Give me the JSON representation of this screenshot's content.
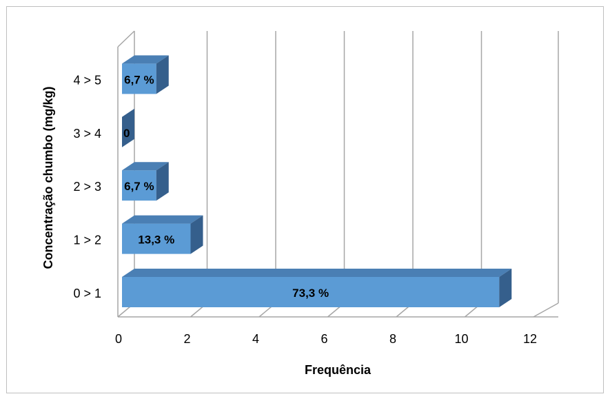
{
  "chart_data": {
    "type": "bar",
    "orientation": "horizontal",
    "style": "3d",
    "title": "",
    "xlabel": "Frequência",
    "ylabel": "Concentração chumbo (mg/kg)",
    "categories": [
      "0 > 1",
      "1 > 2",
      "2 > 3",
      "3 > 4",
      "4 > 5"
    ],
    "values": [
      11,
      2,
      1,
      0,
      1
    ],
    "data_labels": [
      "73,3 %",
      "13,3 %",
      "6,7 %",
      "0",
      "6,7 %"
    ],
    "xlim": [
      0,
      12
    ],
    "xticks": [
      "0",
      "2",
      "4",
      "6",
      "8",
      "10",
      "12"
    ],
    "grid": "vertical",
    "legend": "none",
    "colors": {
      "bar_front": "#5b9bd5",
      "bar_top": "#4a7fb4",
      "bar_side": "#355f8c",
      "grid": "#a6a6a6",
      "text": "#000000"
    }
  }
}
